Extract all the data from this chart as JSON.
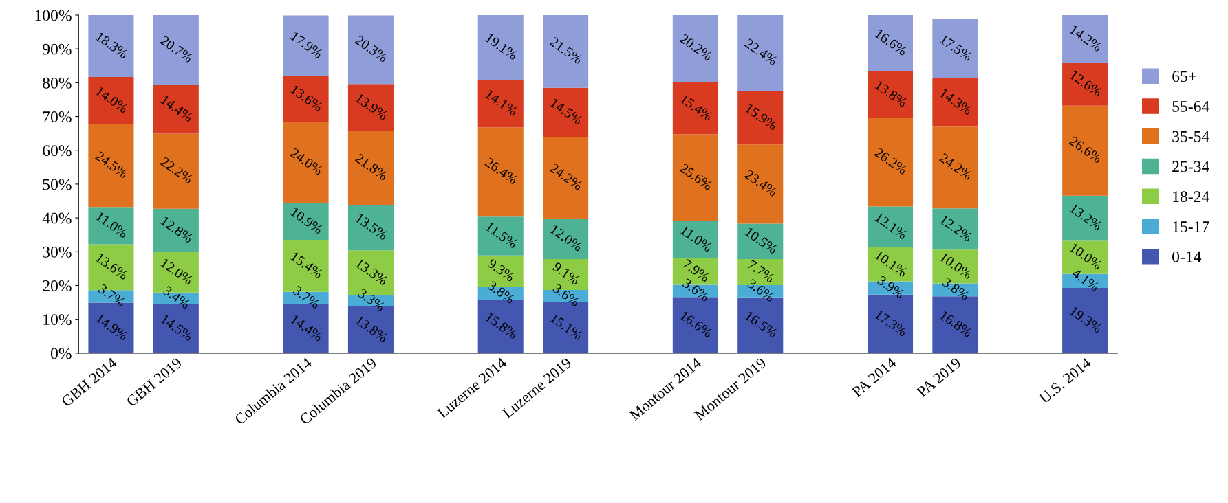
{
  "chart_data": {
    "type": "bar",
    "stacked": true,
    "legend": "right",
    "grid": false,
    "categories": [
      "GBH 2014",
      "GBH 2019",
      null,
      "Columbia 2014",
      "Columbia 2019",
      null,
      "Luzerne 2014",
      "Luzerne 2019",
      null,
      "Montour 2014",
      "Montour 2019",
      null,
      "PA 2014",
      "PA 2019",
      null,
      "U.S. 2014"
    ],
    "ylim": [
      0,
      100
    ],
    "yticks": [
      {
        "value": 0,
        "label": "0%"
      },
      {
        "value": 10,
        "label": "10%"
      },
      {
        "value": 20,
        "label": "20%"
      },
      {
        "value": 30,
        "label": "30%"
      },
      {
        "value": 40,
        "label": "40%"
      },
      {
        "value": 50,
        "label": "50%"
      },
      {
        "value": 60,
        "label": "60%"
      },
      {
        "value": 70,
        "label": "70%"
      },
      {
        "value": 80,
        "label": "80%"
      },
      {
        "value": 90,
        "label": "90%"
      },
      {
        "value": 100,
        "label": "100%"
      }
    ],
    "series": [
      {
        "name": "0-14",
        "color": "#4457b0",
        "values": [
          14.9,
          14.5,
          null,
          14.4,
          13.8,
          null,
          15.8,
          15.1,
          null,
          16.6,
          16.5,
          null,
          17.3,
          16.8,
          null,
          19.3
        ],
        "value_labels": [
          "14.9%",
          "14.5%",
          null,
          "14.4%",
          "13.8%",
          null,
          "15.8%",
          "15.1%",
          null,
          "16.6%",
          "16.5%",
          null,
          "17.3%",
          "16.8%",
          null,
          "19.3%"
        ]
      },
      {
        "name": "15-17",
        "color": "#4bacd6",
        "values": [
          3.7,
          3.4,
          null,
          3.7,
          3.3,
          null,
          3.8,
          3.6,
          null,
          3.6,
          3.6,
          null,
          3.9,
          3.8,
          null,
          4.1
        ],
        "value_labels": [
          "3.7%",
          "3.4%",
          null,
          "3.7%",
          "3.3%",
          null,
          "3.8%",
          "3.6%",
          null,
          "3.6%",
          "3.6%",
          null,
          "3.9%",
          "3.8%",
          null,
          "4.1%"
        ]
      },
      {
        "name": "18-24",
        "color": "#8fcc45",
        "values": [
          13.6,
          12.0,
          null,
          15.4,
          13.3,
          null,
          9.3,
          9.1,
          null,
          7.9,
          7.7,
          null,
          10.1,
          10.0,
          null,
          10.0
        ],
        "value_labels": [
          "13.6%",
          "12.0%",
          null,
          "15.4%",
          "13.3%",
          null,
          "9.3%",
          "9.1%",
          null,
          "7.9%",
          "7.7%",
          null,
          "10.1%",
          "10.0%",
          null,
          "10.0%"
        ]
      },
      {
        "name": "25-34",
        "color": "#4db394",
        "values": [
          11.0,
          12.8,
          null,
          10.9,
          13.5,
          null,
          11.5,
          12.0,
          null,
          11.0,
          10.5,
          null,
          12.1,
          12.2,
          null,
          13.2
        ],
        "value_labels": [
          "11.0%",
          "12.8%",
          null,
          "10.9%",
          "13.5%",
          null,
          "11.5%",
          "12.0%",
          null,
          "11.0%",
          "10.5%",
          null,
          "12.1%",
          "12.2%",
          null,
          "13.2%"
        ]
      },
      {
        "name": "35-54",
        "color": "#e0711f",
        "values": [
          24.5,
          22.2,
          null,
          24.0,
          21.8,
          null,
          26.4,
          24.2,
          null,
          25.6,
          23.4,
          null,
          26.2,
          24.2,
          null,
          26.6
        ],
        "value_labels": [
          "24.5%",
          "22.2%",
          null,
          "24.0%",
          "21.8%",
          null,
          "26.4%",
          "24.2%",
          null,
          "25.6%",
          "23.4%",
          null,
          "26.2%",
          "24.2%",
          null,
          "26.6%"
        ]
      },
      {
        "name": "55-64",
        "color": "#d83b20",
        "values": [
          14.0,
          14.4,
          null,
          13.6,
          13.9,
          null,
          14.1,
          14.5,
          null,
          15.4,
          15.9,
          null,
          13.8,
          14.3,
          null,
          12.6
        ],
        "value_labels": [
          "14.0%",
          "14.4%",
          null,
          "13.6%",
          "13.9%",
          null,
          "14.1%",
          "14.5%",
          null,
          "15.4%",
          "15.9%",
          null,
          "13.8%",
          "14.3%",
          null,
          "12.6%"
        ]
      },
      {
        "name": "65+",
        "color": "#8f9dd8",
        "values": [
          18.3,
          20.7,
          null,
          17.9,
          20.3,
          null,
          19.1,
          21.5,
          null,
          20.2,
          22.4,
          null,
          16.6,
          17.5,
          null,
          14.2
        ],
        "value_labels": [
          "18.3%",
          "20.7%",
          null,
          "17.9%",
          "20.3%",
          null,
          "19.1%",
          "21.5%",
          null,
          "20.2%",
          "22.4%",
          null,
          "16.6%",
          "17.5%",
          null,
          "14.2%"
        ]
      }
    ]
  }
}
